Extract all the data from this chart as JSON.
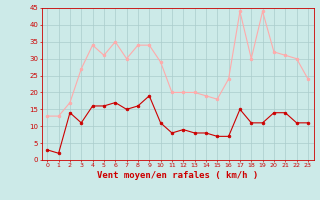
{
  "x": [
    0,
    1,
    2,
    3,
    4,
    5,
    6,
    7,
    8,
    9,
    10,
    11,
    12,
    13,
    14,
    15,
    16,
    17,
    18,
    19,
    20,
    21,
    22,
    23
  ],
  "wind_avg": [
    3,
    2,
    14,
    11,
    16,
    16,
    17,
    15,
    16,
    19,
    11,
    8,
    9,
    8,
    8,
    7,
    7,
    15,
    11,
    11,
    14,
    14,
    11,
    11
  ],
  "wind_gust": [
    13,
    13,
    17,
    27,
    34,
    31,
    35,
    30,
    34,
    34,
    29,
    20,
    20,
    20,
    19,
    18,
    24,
    44,
    30,
    44,
    32,
    31,
    30,
    24
  ],
  "bg_color": "#cceae8",
  "grid_color": "#aacccc",
  "avg_color": "#cc0000",
  "gust_color": "#ffaaaa",
  "xlabel": "Vent moyen/en rafales ( km/h )",
  "xlabel_color": "#cc0000",
  "tick_color": "#cc0000",
  "ylim": [
    0,
    45
  ],
  "yticks": [
    0,
    5,
    10,
    15,
    20,
    25,
    30,
    35,
    40,
    45
  ]
}
